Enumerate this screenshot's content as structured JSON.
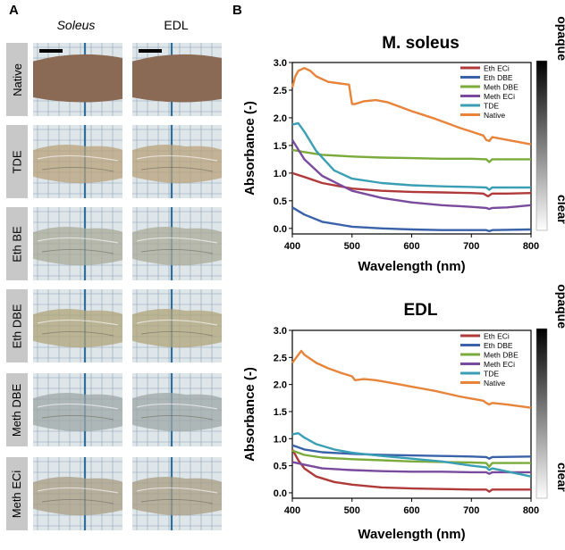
{
  "panels": {
    "a_label": "A",
    "b_label": "B"
  },
  "photo_grid": {
    "columns": [
      "Soleus",
      "EDL"
    ],
    "rows": [
      {
        "label": "Native",
        "color": "#8a6a55"
      },
      {
        "label": "TDE",
        "color": "#b8a27a"
      },
      {
        "label": "Eth BE",
        "color": "#a9aa98"
      },
      {
        "label": "Eth DBE",
        "color": "#b0a478"
      },
      {
        "label": "Meth DBE",
        "color": "#9ea7a6"
      },
      {
        "label": "Meth ECi",
        "color": "#a89c82"
      }
    ]
  },
  "chart_data": [
    {
      "type": "line",
      "title": "M. soleus",
      "xlabel": "Wavelength (nm)",
      "ylabel": "Absorbance (-)",
      "xlim": [
        400,
        800
      ],
      "ylim": [
        -0.1,
        3.0
      ],
      "xticks": [
        "400",
        "500",
        "600",
        "700",
        "800"
      ],
      "yticks": [
        "0.0",
        "0.5",
        "1.0",
        "1.5",
        "2.0",
        "2.5",
        "3.0"
      ],
      "scale_labels": {
        "top": "opaque",
        "bottom": "clear"
      },
      "series": [
        {
          "name": "Eth ECi",
          "color": "#b03a3a",
          "x": [
            400,
            420,
            450,
            500,
            550,
            600,
            650,
            700,
            720,
            728,
            735,
            760,
            800
          ],
          "y": [
            1.0,
            0.93,
            0.82,
            0.72,
            0.68,
            0.66,
            0.65,
            0.64,
            0.63,
            0.58,
            0.63,
            0.63,
            0.64
          ]
        },
        {
          "name": "Eth DBE",
          "color": "#3a62a8",
          "x": [
            400,
            420,
            450,
            500,
            550,
            600,
            650,
            700,
            725,
            730,
            735,
            800
          ],
          "y": [
            0.38,
            0.25,
            0.12,
            0.03,
            0.0,
            -0.02,
            -0.03,
            -0.03,
            -0.03,
            -0.05,
            -0.03,
            -0.02
          ]
        },
        {
          "name": "Meth DBE",
          "color": "#7bab3b",
          "x": [
            400,
            420,
            450,
            500,
            550,
            600,
            650,
            700,
            725,
            730,
            735,
            800
          ],
          "y": [
            1.42,
            1.38,
            1.33,
            1.3,
            1.28,
            1.27,
            1.26,
            1.26,
            1.25,
            1.2,
            1.25,
            1.25
          ]
        },
        {
          "name": "Meth ECi",
          "color": "#7a4a9c",
          "x": [
            400,
            420,
            450,
            500,
            550,
            600,
            650,
            700,
            725,
            730,
            735,
            760,
            800
          ],
          "y": [
            1.6,
            1.25,
            0.95,
            0.68,
            0.55,
            0.47,
            0.42,
            0.39,
            0.37,
            0.35,
            0.37,
            0.38,
            0.42
          ]
        },
        {
          "name": "TDE",
          "color": "#3a9fb5",
          "x": [
            400,
            410,
            420,
            440,
            470,
            500,
            550,
            600,
            650,
            700,
            725,
            730,
            735,
            800
          ],
          "y": [
            1.88,
            1.9,
            1.75,
            1.4,
            1.05,
            0.9,
            0.82,
            0.78,
            0.76,
            0.75,
            0.74,
            0.7,
            0.74,
            0.74
          ]
        },
        {
          "name": "Native",
          "color": "#e8833a",
          "x": [
            400,
            405,
            410,
            420,
            430,
            440,
            460,
            480,
            495,
            500,
            505,
            520,
            540,
            560,
            580,
            600,
            620,
            640,
            660,
            680,
            700,
            720,
            725,
            730,
            735,
            760,
            800
          ],
          "y": [
            2.55,
            2.75,
            2.85,
            2.9,
            2.85,
            2.75,
            2.65,
            2.62,
            2.6,
            2.25,
            2.25,
            2.3,
            2.32,
            2.28,
            2.2,
            2.12,
            2.05,
            1.98,
            1.9,
            1.82,
            1.75,
            1.68,
            1.6,
            1.58,
            1.65,
            1.6,
            1.52
          ]
        }
      ]
    },
    {
      "type": "line",
      "title": "EDL",
      "xlabel": "Wavelength (nm)",
      "ylabel": "Absorbance (-)",
      "xlim": [
        400,
        800
      ],
      "ylim": [
        -0.1,
        3.0
      ],
      "xticks": [
        "400",
        "500",
        "600",
        "700",
        "800"
      ],
      "yticks": [
        "0.0",
        "0.5",
        "1.0",
        "1.5",
        "2.0",
        "2.5",
        "3.0"
      ],
      "scale_labels": {
        "top": "opaque",
        "bottom": "clear"
      },
      "series": [
        {
          "name": "Eth ECi",
          "color": "#b03a3a",
          "x": [
            400,
            410,
            420,
            440,
            470,
            500,
            550,
            600,
            650,
            700,
            725,
            730,
            735,
            800
          ],
          "y": [
            0.8,
            0.6,
            0.45,
            0.3,
            0.2,
            0.15,
            0.1,
            0.08,
            0.07,
            0.06,
            0.06,
            0.02,
            0.06,
            0.06
          ]
        },
        {
          "name": "Eth DBE",
          "color": "#3a62a8",
          "x": [
            400,
            420,
            450,
            500,
            550,
            600,
            650,
            700,
            725,
            730,
            735,
            800
          ],
          "y": [
            0.88,
            0.8,
            0.75,
            0.72,
            0.7,
            0.69,
            0.68,
            0.67,
            0.66,
            0.63,
            0.66,
            0.67
          ]
        },
        {
          "name": "Meth DBE",
          "color": "#7bab3b",
          "x": [
            400,
            420,
            450,
            500,
            550,
            600,
            650,
            700,
            725,
            730,
            735,
            800
          ],
          "y": [
            0.78,
            0.7,
            0.65,
            0.62,
            0.6,
            0.58,
            0.57,
            0.56,
            0.55,
            0.48,
            0.55,
            0.55
          ]
        },
        {
          "name": "Meth ECi",
          "color": "#7a4a9c",
          "x": [
            400,
            420,
            450,
            500,
            550,
            600,
            650,
            700,
            725,
            730,
            735,
            800
          ],
          "y": [
            0.57,
            0.52,
            0.45,
            0.42,
            0.4,
            0.39,
            0.39,
            0.38,
            0.38,
            0.35,
            0.38,
            0.38
          ]
        },
        {
          "name": "TDE",
          "color": "#3a9fb5",
          "x": [
            400,
            410,
            420,
            440,
            470,
            500,
            550,
            600,
            650,
            700,
            725,
            730,
            735,
            800
          ],
          "y": [
            1.08,
            1.1,
            1.02,
            0.9,
            0.8,
            0.74,
            0.68,
            0.63,
            0.58,
            0.5,
            0.47,
            0.42,
            0.45,
            0.3
          ]
        },
        {
          "name": "Native",
          "color": "#e8833a",
          "x": [
            400,
            410,
            415,
            420,
            440,
            460,
            480,
            500,
            505,
            520,
            540,
            560,
            580,
            600,
            620,
            640,
            660,
            680,
            700,
            720,
            725,
            730,
            735,
            760,
            800
          ],
          "y": [
            2.4,
            2.55,
            2.62,
            2.55,
            2.4,
            2.3,
            2.22,
            2.15,
            2.08,
            2.1,
            2.08,
            2.04,
            2.0,
            1.96,
            1.92,
            1.88,
            1.83,
            1.78,
            1.74,
            1.7,
            1.66,
            1.63,
            1.66,
            1.63,
            1.57
          ]
        }
      ]
    }
  ]
}
